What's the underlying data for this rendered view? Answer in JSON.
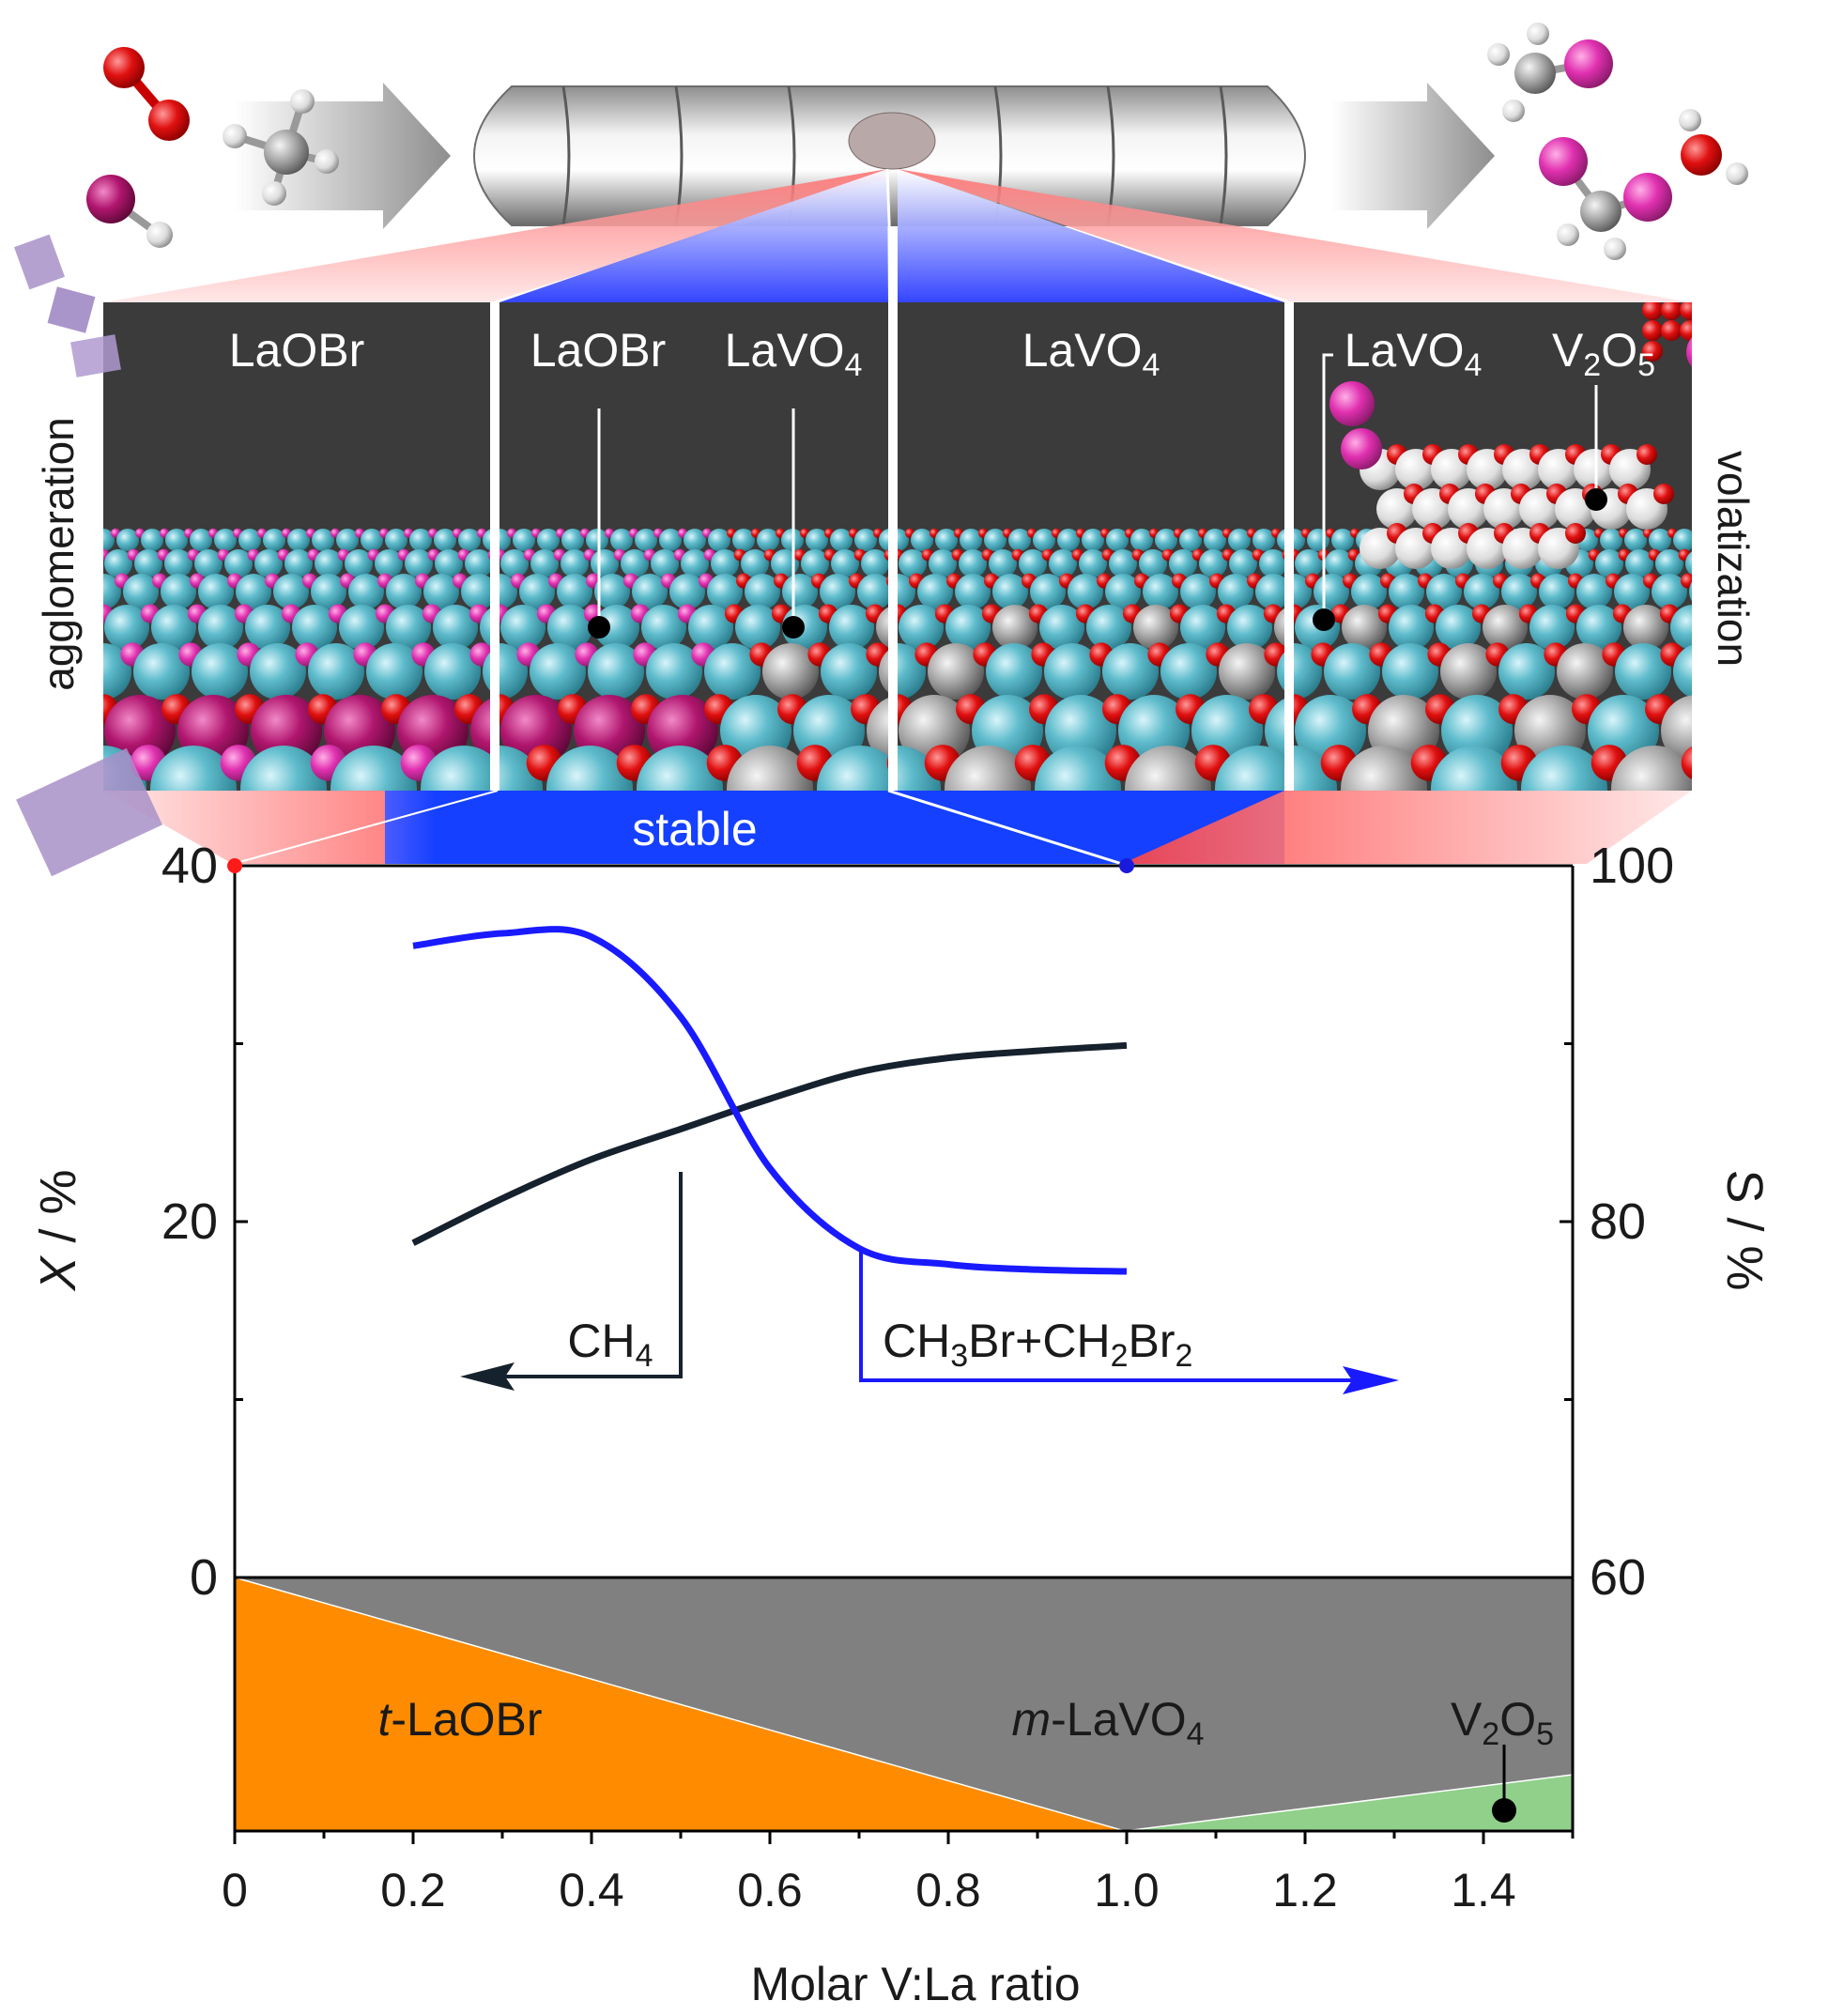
{
  "chart_data": {
    "type": "line",
    "x": [
      0.2,
      0.3,
      0.4,
      0.5,
      0.6,
      0.7,
      0.8,
      0.9,
      1.0
    ],
    "series": [
      {
        "name": "CH4",
        "axis": "left",
        "color": "#16212e",
        "values": [
          18.8,
          21.3,
          23.5,
          25.2,
          26.9,
          28.4,
          29.2,
          29.6,
          29.9
        ]
      },
      {
        "name": "CH3Br+CH2Br2",
        "axis": "right",
        "color": "#1a1aff",
        "values": [
          95.5,
          96.2,
          96.0,
          91.5,
          83.0,
          78.5,
          77.6,
          77.3,
          77.2
        ]
      }
    ],
    "xlabel": "Molar V:La ratio",
    "ylabel_left": "X / %",
    "ylabel_right": "S / %",
    "xlim": [
      0,
      1.5
    ],
    "ylim_left": [
      0,
      40
    ],
    "ylim_right": [
      60,
      100
    ],
    "xticks": [
      "0",
      "0.2",
      "0.4",
      "0.6",
      "0.8",
      "1.0",
      "1.2",
      "1.4"
    ],
    "yticks_left": [
      "0",
      "20",
      "40"
    ],
    "yticks_right": [
      "60",
      "80",
      "100"
    ],
    "annotations": {
      "ch4_label": "CH4",
      "product_label": "CH3Br+CH2Br2",
      "stable_label": "stable",
      "left_side_label": "agglomeration",
      "right_side_label": "volatization"
    },
    "phase_regions": [
      {
        "label": "t-LaOBr",
        "color": "#ff8c00"
      },
      {
        "label": "m-LaVO4",
        "color": "#808080"
      },
      {
        "label": "V2O5",
        "color": "#90d08a"
      }
    ],
    "panels": [
      {
        "labels": [
          "LaOBr"
        ]
      },
      {
        "labels": [
          "LaOBr",
          "LaVO4"
        ]
      },
      {
        "labels": [
          "LaVO4"
        ]
      },
      {
        "labels": [
          "LaVO4",
          "V2O5"
        ]
      }
    ]
  }
}
